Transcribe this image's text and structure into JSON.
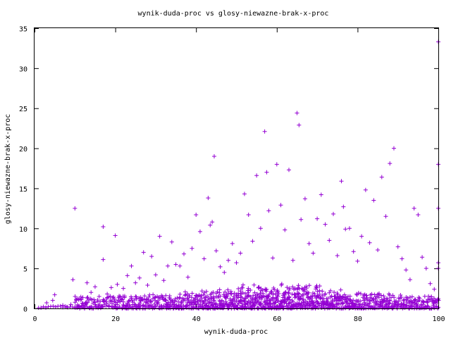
{
  "chart_data": {
    "type": "scatter",
    "title": "wynik-duda-proc vs glosy-niewazne-brak-x-proc",
    "xlabel": "wynik-duda-proc",
    "ylabel": "glosy-niewazne-brak-x-proc",
    "xlim": [
      0,
      100
    ],
    "ylim": [
      0,
      35
    ],
    "x_ticks": [
      0,
      20,
      40,
      60,
      80,
      100
    ],
    "y_ticks": [
      0,
      5,
      10,
      15,
      20,
      25,
      30,
      35
    ],
    "x_tick_labels": [
      "0",
      "20",
      "40",
      "60",
      "80",
      "100"
    ],
    "y_tick_labels": [
      "0",
      "5",
      "10",
      "15",
      "20",
      "25",
      "30",
      "35"
    ],
    "marker": "plus",
    "point_color": "#9400d3",
    "grid": false,
    "legend": "none",
    "series": [
      {
        "points": [
          [
            3.0,
            0.7
          ],
          [
            4.5,
            1.0
          ],
          [
            5.0,
            1.7
          ],
          [
            7.0,
            0.4
          ],
          [
            8.0,
            0.2
          ],
          [
            9.0,
            0.5
          ],
          [
            9.5,
            3.6
          ],
          [
            10.0,
            12.5
          ],
          [
            11.0,
            0.3
          ],
          [
            12.0,
            0.6
          ],
          [
            13.0,
            3.2
          ],
          [
            14.0,
            2.0
          ],
          [
            15.0,
            2.7
          ],
          [
            16.0,
            1.5
          ],
          [
            17.0,
            10.2
          ],
          [
            17.0,
            6.1
          ],
          [
            18.0,
            1.8
          ],
          [
            19.0,
            2.6
          ],
          [
            20.0,
            9.1
          ],
          [
            20.5,
            3.0
          ],
          [
            22.0,
            2.5
          ],
          [
            23.0,
            4.1
          ],
          [
            24.0,
            5.3
          ],
          [
            25.0,
            3.2
          ],
          [
            26.0,
            3.8
          ],
          [
            27.0,
            7.0
          ],
          [
            28.0,
            2.9
          ],
          [
            29.0,
            6.5
          ],
          [
            30.0,
            4.2
          ],
          [
            31.0,
            9.0
          ],
          [
            32.0,
            3.5
          ],
          [
            33.0,
            5.3
          ],
          [
            34.0,
            8.3
          ],
          [
            35.0,
            5.5
          ],
          [
            36.0,
            5.3
          ],
          [
            37.0,
            6.8
          ],
          [
            38.0,
            3.9
          ],
          [
            39.0,
            7.5
          ],
          [
            40.0,
            11.7
          ],
          [
            41.0,
            9.6
          ],
          [
            42.0,
            6.2
          ],
          [
            43.0,
            13.8
          ],
          [
            43.5,
            10.4
          ],
          [
            44.0,
            10.8
          ],
          [
            44.5,
            19.0
          ],
          [
            45.0,
            7.2
          ],
          [
            46.0,
            5.2
          ],
          [
            47.0,
            4.5
          ],
          [
            48.0,
            6.0
          ],
          [
            49.0,
            8.1
          ],
          [
            50.0,
            5.7
          ],
          [
            51.0,
            6.9
          ],
          [
            52.0,
            14.3
          ],
          [
            53.0,
            11.7
          ],
          [
            54.0,
            8.4
          ],
          [
            55.0,
            16.6
          ],
          [
            56.0,
            10.0
          ],
          [
            57.0,
            22.1
          ],
          [
            57.5,
            17.0
          ],
          [
            58.0,
            12.2
          ],
          [
            59.0,
            6.3
          ],
          [
            60.0,
            18.0
          ],
          [
            61.0,
            12.9
          ],
          [
            62.0,
            9.8
          ],
          [
            63.0,
            17.3
          ],
          [
            64.0,
            6.0
          ],
          [
            65.0,
            24.4
          ],
          [
            65.5,
            22.9
          ],
          [
            66.0,
            11.1
          ],
          [
            67.0,
            13.7
          ],
          [
            68.0,
            8.1
          ],
          [
            69.0,
            6.9
          ],
          [
            70.0,
            11.2
          ],
          [
            71.0,
            14.2
          ],
          [
            72.0,
            10.5
          ],
          [
            73.0,
            8.5
          ],
          [
            74.0,
            11.8
          ],
          [
            75.0,
            6.6
          ],
          [
            76.0,
            15.9
          ],
          [
            76.5,
            12.7
          ],
          [
            77.0,
            9.9
          ],
          [
            78.0,
            10.0
          ],
          [
            79.0,
            7.1
          ],
          [
            80.0,
            5.9
          ],
          [
            81.0,
            9.0
          ],
          [
            82.0,
            14.8
          ],
          [
            83.0,
            8.2
          ],
          [
            84.0,
            13.5
          ],
          [
            85.0,
            7.3
          ],
          [
            86.0,
            16.4
          ],
          [
            87.0,
            11.5
          ],
          [
            88.0,
            18.1
          ],
          [
            89.0,
            20.0
          ],
          [
            90.0,
            7.7
          ],
          [
            91.0,
            6.2
          ],
          [
            92.0,
            4.8
          ],
          [
            93.0,
            3.6
          ],
          [
            94.0,
            12.5
          ],
          [
            95.0,
            11.7
          ],
          [
            96.0,
            6.4
          ],
          [
            97.0,
            5.0
          ],
          [
            98.0,
            3.1
          ],
          [
            99.0,
            2.4
          ],
          [
            100.0,
            33.3
          ],
          [
            100.0,
            18.0
          ],
          [
            100.0,
            12.5
          ],
          [
            100.0,
            5.7
          ],
          [
            100.0,
            5.0
          ],
          [
            100.0,
            1.2
          ]
        ]
      }
    ],
    "density_band": {
      "x_start": 10,
      "x_end": 100,
      "y_max": 1.5,
      "peak_x": 60,
      "peak_y_extra": 2.0
    }
  }
}
